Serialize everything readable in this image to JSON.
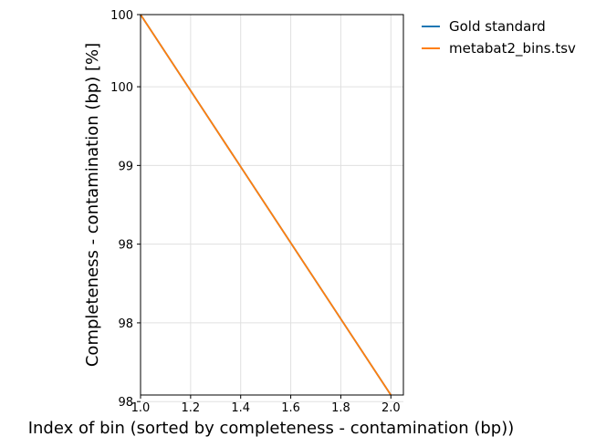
{
  "chart_data": {
    "type": "line",
    "xlabel": "Index of bin (sorted by completeness - contamination (bp))",
    "ylabel": "Completeness - contamination (bp) [%]",
    "xlim": [
      1.0,
      2.05
    ],
    "ylim": [
      97.55,
      100.45
    ],
    "xticks": [
      1.0,
      1.2,
      1.4,
      1.6,
      1.8,
      2.0
    ],
    "xtick_labels": [
      "1.0",
      "1.2",
      "1.4",
      "1.6",
      "1.8",
      "2.0"
    ],
    "yticks": [
      100.45,
      99.9,
      99.3,
      98.7,
      98.1,
      97.5
    ],
    "ytick_labels": [
      "100",
      "100",
      "99",
      "98",
      "98",
      "98"
    ],
    "grid": true,
    "legend_position": "outside-top-right",
    "series": [
      {
        "name": "Gold standard",
        "color": "#1f77b4",
        "x": [
          1.0,
          2.0
        ],
        "y": [
          100.45,
          97.55
        ]
      },
      {
        "name": "metabat2_bins.tsv",
        "color": "#ff7f0e",
        "x": [
          1.0,
          2.0
        ],
        "y": [
          100.45,
          97.55
        ]
      }
    ]
  }
}
